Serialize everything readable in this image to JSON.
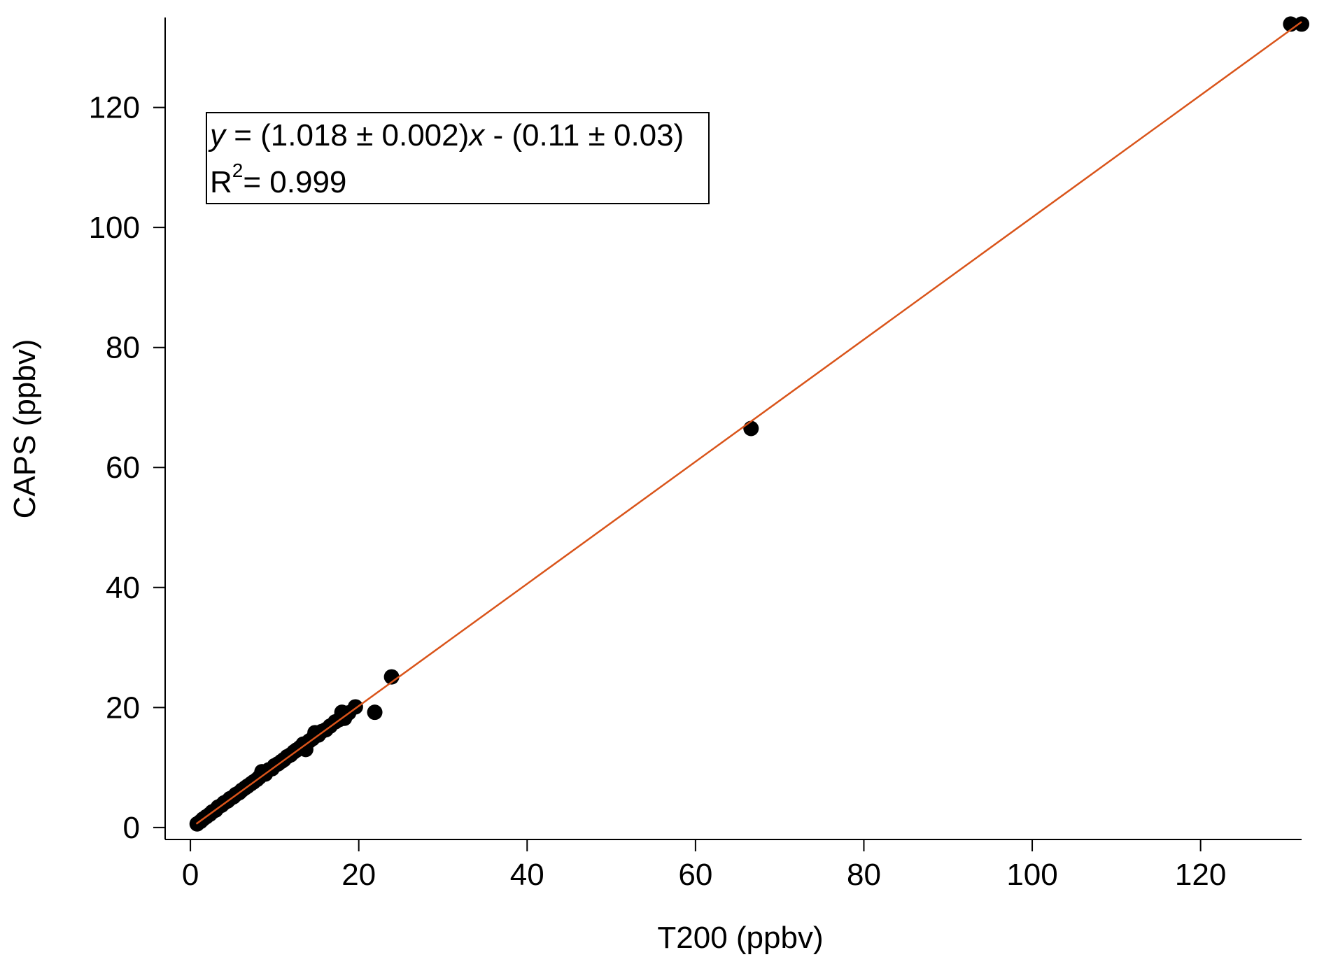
{
  "chart_data": {
    "type": "scatter",
    "xlabel": "T200 (ppbv)",
    "ylabel": "CAPS (ppbv)",
    "xlim": [
      -3,
      132
    ],
    "ylim": [
      -2,
      135
    ],
    "xticks": [
      0,
      20,
      40,
      60,
      80,
      100,
      120
    ],
    "yticks": [
      0,
      20,
      40,
      60,
      80,
      100,
      120
    ],
    "grid": false,
    "legend_placement": "top-left",
    "colors": {
      "points": "#000000",
      "fit_line": "#d9541a"
    },
    "annotation": {
      "equation": {
        "y": "y",
        "eq1": " = (1.018 ± 0.002)",
        "x": "x",
        "eq2": " - (0.11 ± 0.03)"
      },
      "r2": {
        "r": "R",
        "sup": "2",
        "rest": "= 0.999"
      }
    },
    "fit": {
      "slope": 1.018,
      "intercept": -0.11,
      "x_range": [
        0.7,
        132
      ]
    },
    "points": [
      [
        0.8,
        0.6
      ],
      [
        1.2,
        1.0
      ],
      [
        1.5,
        1.4
      ],
      [
        1.9,
        1.8
      ],
      [
        2.3,
        2.2
      ],
      [
        2.6,
        2.6
      ],
      [
        3.0,
        2.9
      ],
      [
        3.3,
        3.4
      ],
      [
        3.7,
        3.7
      ],
      [
        4.0,
        4.1
      ],
      [
        4.4,
        4.4
      ],
      [
        4.7,
        4.8
      ],
      [
        5.1,
        5.1
      ],
      [
        5.4,
        5.5
      ],
      [
        5.8,
        5.8
      ],
      [
        6.1,
        6.2
      ],
      [
        6.5,
        6.6
      ],
      [
        6.8,
        6.9
      ],
      [
        7.2,
        7.3
      ],
      [
        7.5,
        7.6
      ],
      [
        7.9,
        8.0
      ],
      [
        8.2,
        8.4
      ],
      [
        8.5,
        9.3
      ],
      [
        8.9,
        8.9
      ],
      [
        9.3,
        9.6
      ],
      [
        9.7,
        9.8
      ],
      [
        10.0,
        10.3
      ],
      [
        10.4,
        10.6
      ],
      [
        10.8,
        11.0
      ],
      [
        11.1,
        11.3
      ],
      [
        11.5,
        11.8
      ],
      [
        11.9,
        12.1
      ],
      [
        12.3,
        12.6
      ],
      [
        12.6,
        12.9
      ],
      [
        13.0,
        13.3
      ],
      [
        13.4,
        13.9
      ],
      [
        13.7,
        13.0
      ],
      [
        14.1,
        14.4
      ],
      [
        14.5,
        14.8
      ],
      [
        14.8,
        15.8
      ],
      [
        15.2,
        15.4
      ],
      [
        15.6,
        16.0
      ],
      [
        16.1,
        16.3
      ],
      [
        16.6,
        16.9
      ],
      [
        17.2,
        17.6
      ],
      [
        17.7,
        18.0
      ],
      [
        18.0,
        19.2
      ],
      [
        18.3,
        18.2
      ],
      [
        18.8,
        19.1
      ],
      [
        19.6,
        20.1
      ],
      [
        21.9,
        19.2
      ],
      [
        23.9,
        25.1
      ],
      [
        66.6,
        66.5
      ],
      [
        130.7,
        133.9
      ],
      [
        132.0,
        133.9
      ]
    ]
  }
}
